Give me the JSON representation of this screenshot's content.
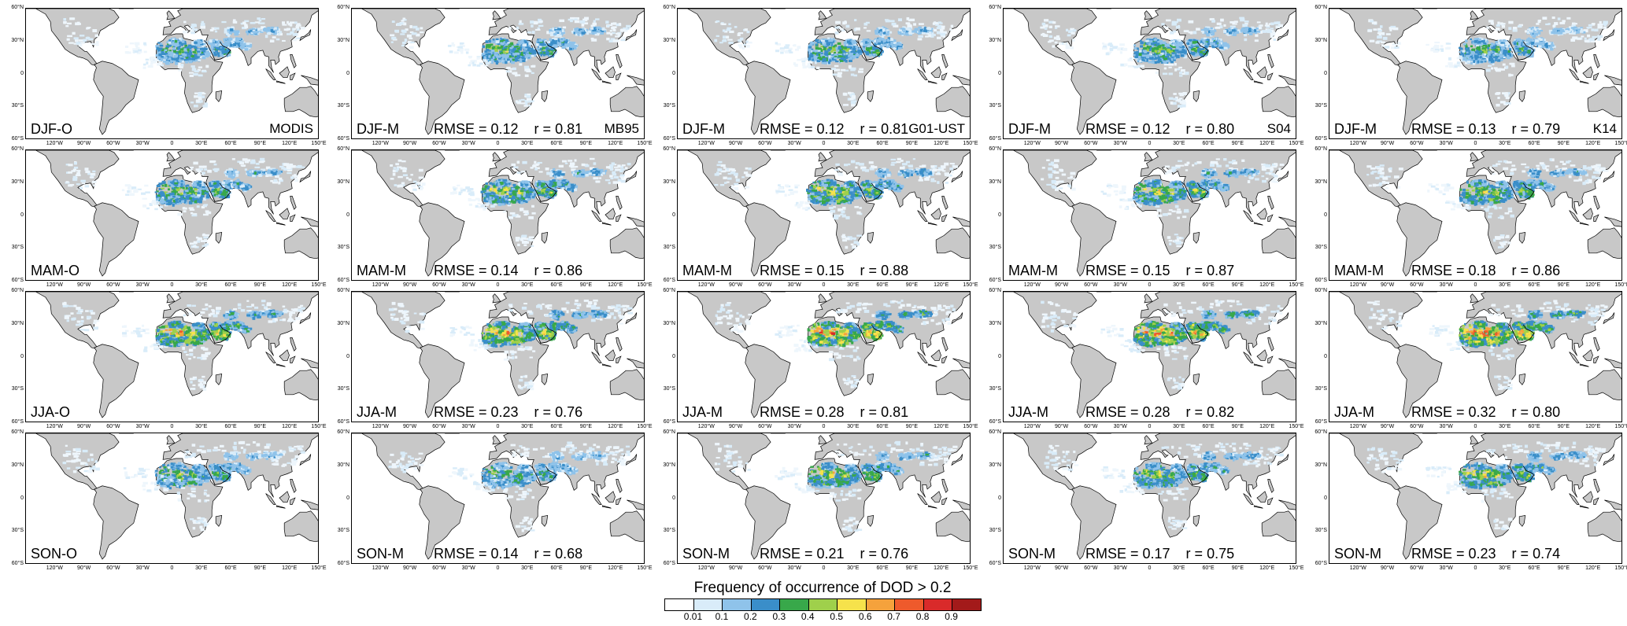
{
  "lat_labels": [
    "60°N",
    "30°N",
    "0",
    "30°S",
    "60°S"
  ],
  "lon_labels": [
    "120°W",
    "90°W",
    "60°W",
    "30°W",
    "0",
    "30°E",
    "60°E",
    "90°E",
    "120°E",
    "150°E"
  ],
  "columns": [
    {
      "model": "MODIS"
    },
    {
      "model": "MB95"
    },
    {
      "model": "G01-UST"
    },
    {
      "model": "S04"
    },
    {
      "model": "K14"
    }
  ],
  "rows": [
    {
      "season": "DJF",
      "panels": [
        {
          "label": "DJF-O",
          "stats": ""
        },
        {
          "label": "DJF-M",
          "stats": "RMSE = 0.12    r = 0.81"
        },
        {
          "label": "DJF-M",
          "stats": "RMSE = 0.12    r = 0.81"
        },
        {
          "label": "DJF-M",
          "stats": "RMSE = 0.12    r = 0.80"
        },
        {
          "label": "DJF-M",
          "stats": "RMSE = 0.13    r = 0.79"
        }
      ]
    },
    {
      "season": "MAM",
      "panels": [
        {
          "label": "MAM-O",
          "stats": ""
        },
        {
          "label": "MAM-M",
          "stats": "RMSE = 0.14    r = 0.86"
        },
        {
          "label": "MAM-M",
          "stats": "RMSE = 0.15    r = 0.88"
        },
        {
          "label": "MAM-M",
          "stats": "RMSE = 0.15    r = 0.87"
        },
        {
          "label": "MAM-M",
          "stats": "RMSE = 0.18    r = 0.86"
        }
      ]
    },
    {
      "season": "JJA",
      "panels": [
        {
          "label": "JJA-O",
          "stats": ""
        },
        {
          "label": "JJA-M",
          "stats": "RMSE = 0.23    r = 0.76"
        },
        {
          "label": "JJA-M",
          "stats": "RMSE = 0.28    r = 0.81"
        },
        {
          "label": "JJA-M",
          "stats": "RMSE = 0.28    r = 0.82"
        },
        {
          "label": "JJA-M",
          "stats": "RMSE = 0.32    r = 0.80"
        }
      ]
    },
    {
      "season": "SON",
      "panels": [
        {
          "label": "SON-O",
          "stats": ""
        },
        {
          "label": "SON-M",
          "stats": "RMSE = 0.14    r = 0.68"
        },
        {
          "label": "SON-M",
          "stats": "RMSE = 0.21    r = 0.76"
        },
        {
          "label": "SON-M",
          "stats": "RMSE = 0.17    r = 0.75"
        },
        {
          "label": "SON-M",
          "stats": "RMSE = 0.23    r = 0.74"
        }
      ]
    }
  ],
  "colorbar": {
    "title": "Frequency of occurrence of DOD > 0.2",
    "ticks": [
      "0.01",
      "0.1",
      "0.2",
      "0.3",
      "0.4",
      "0.5",
      "0.6",
      "0.7",
      "0.8",
      "0.9"
    ],
    "colors": [
      "#ffffff",
      "#d9ecf9",
      "#8fc3ea",
      "#3a8ec9",
      "#38a84a",
      "#9fd04b",
      "#f6e24b",
      "#f5a23c",
      "#ee5a2c",
      "#d92a2a",
      "#a31a1a"
    ]
  },
  "land_color": "#c8c8c8",
  "intensity": {
    "DJF": [
      0.45,
      0.5,
      0.5,
      0.5,
      0.45
    ],
    "MAM": [
      0.55,
      0.6,
      0.62,
      0.62,
      0.6
    ],
    "JJA": [
      0.75,
      0.75,
      0.85,
      0.85,
      0.88
    ],
    "SON": [
      0.5,
      0.45,
      0.6,
      0.55,
      0.62
    ]
  }
}
